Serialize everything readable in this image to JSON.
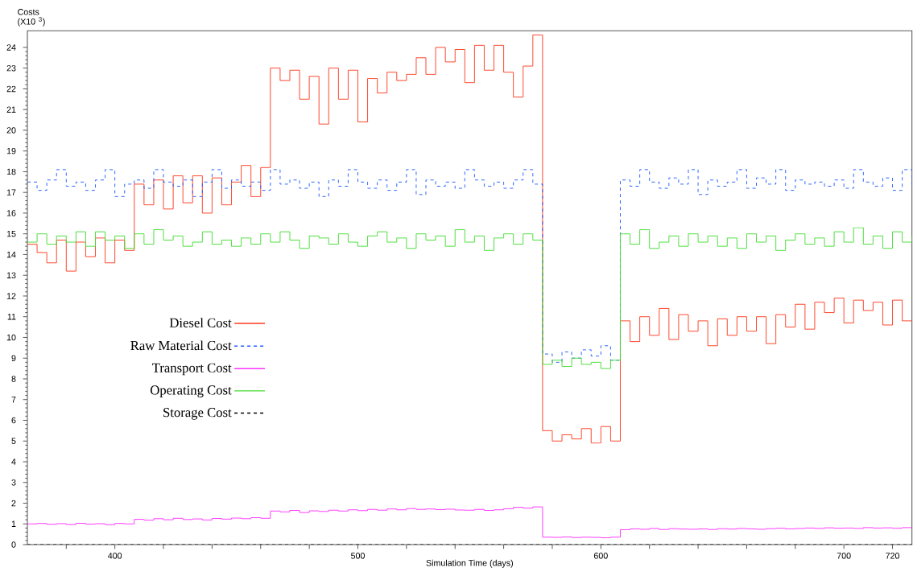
{
  "chart_data": {
    "type": "step",
    "xlabel": "Simulation Time (days)",
    "ylabel": "Costs (X10 $^{3}$)",
    "x": [
      364,
      368,
      372,
      376,
      380,
      384,
      388,
      392,
      396,
      400,
      404,
      408,
      412,
      416,
      420,
      424,
      428,
      432,
      436,
      440,
      444,
      448,
      452,
      456,
      460,
      464,
      468,
      472,
      476,
      480,
      484,
      488,
      492,
      496,
      500,
      504,
      508,
      512,
      516,
      520,
      524,
      528,
      532,
      536,
      540,
      544,
      548,
      552,
      556,
      560,
      564,
      568,
      572,
      576,
      580,
      584,
      588,
      592,
      596,
      600,
      604,
      608,
      612,
      616,
      620,
      624,
      628,
      632,
      636,
      640,
      644,
      648,
      652,
      656,
      660,
      664,
      668,
      672,
      676,
      680,
      684,
      688,
      692,
      696,
      700,
      704,
      708,
      712,
      716,
      720,
      724,
      728
    ],
    "series": [
      {
        "name": "Diesel Cost",
        "color": "#ff3b1f",
        "line_style": "solid",
        "values": [
          14.5,
          14.1,
          13.6,
          14.7,
          13.2,
          14.6,
          13.9,
          14.8,
          13.6,
          14.7,
          14.2,
          17.4,
          16.4,
          17.6,
          16.2,
          17.8,
          16.5,
          17.8,
          16.0,
          17.7,
          16.4,
          17.5,
          18.3,
          16.8,
          18.2,
          23.0,
          22.4,
          22.9,
          21.5,
          22.6,
          20.3,
          23.0,
          21.5,
          22.9,
          20.4,
          22.5,
          21.8,
          22.8,
          22.4,
          22.7,
          23.5,
          22.7,
          24.0,
          23.3,
          23.9,
          22.3,
          24.1,
          22.9,
          24.1,
          22.8,
          21.6,
          23.1,
          24.6,
          5.5,
          5.0,
          5.3,
          5.1,
          5.6,
          4.9,
          5.7,
          5.0,
          10.8,
          9.8,
          11.0,
          10.1,
          11.4,
          9.9,
          11.1,
          10.3,
          10.8,
          9.6,
          10.9,
          10.1,
          11.0,
          10.3,
          11.0,
          9.7,
          11.1,
          10.5,
          11.6,
          10.4,
          11.7,
          11.2,
          11.9,
          10.7,
          11.8,
          11.3,
          11.7,
          10.6,
          11.8,
          10.8,
          10.8
        ]
      },
      {
        "name": "Raw Material Cost",
        "color": "#1f5cff",
        "line_style": "dashed",
        "values": [
          17.5,
          17.1,
          17.6,
          18.1,
          17.3,
          17.5,
          17.1,
          17.6,
          18.1,
          16.8,
          17.4,
          17.6,
          17.2,
          18.1,
          17.5,
          17.3,
          17.6,
          16.8,
          17.5,
          18.1,
          17.2,
          17.6,
          17.3,
          17.5,
          17.1,
          18.1,
          17.4,
          17.6,
          17.2,
          17.5,
          16.8,
          17.6,
          17.3,
          18.1,
          17.5,
          17.2,
          17.6,
          17.1,
          17.5,
          18.1,
          16.9,
          17.6,
          17.3,
          17.5,
          17.2,
          18.1,
          17.6,
          17.3,
          17.5,
          17.2,
          17.6,
          18.1,
          17.4,
          9.2,
          8.8,
          9.3,
          9.0,
          9.4,
          9.1,
          9.6,
          8.9,
          17.6,
          17.3,
          18.1,
          17.5,
          17.2,
          17.7,
          17.4,
          18.1,
          16.9,
          17.6,
          17.3,
          17.5,
          18.1,
          17.2,
          17.7,
          17.4,
          18.1,
          17.1,
          17.6,
          17.4,
          17.5,
          17.3,
          17.6,
          17.2,
          18.1,
          17.5,
          17.3,
          17.7,
          17.1,
          18.1,
          17.3
        ]
      },
      {
        "name": "Transport Cost",
        "color": "#ff33ff",
        "line_style": "solid",
        "values": [
          1.0,
          1.02,
          0.98,
          1.01,
          0.97,
          1.03,
          0.99,
          1.01,
          0.96,
          1.02,
          1.0,
          1.22,
          1.18,
          1.25,
          1.2,
          1.27,
          1.21,
          1.24,
          1.19,
          1.26,
          1.23,
          1.28,
          1.25,
          1.3,
          1.27,
          1.62,
          1.58,
          1.65,
          1.55,
          1.63,
          1.6,
          1.66,
          1.62,
          1.68,
          1.64,
          1.7,
          1.66,
          1.72,
          1.68,
          1.74,
          1.7,
          1.72,
          1.69,
          1.71,
          1.67,
          1.66,
          1.7,
          1.65,
          1.68,
          1.73,
          1.8,
          1.76,
          1.82,
          0.36,
          0.35,
          0.37,
          0.34,
          0.36,
          0.35,
          0.33,
          0.36,
          0.72,
          0.76,
          0.74,
          0.78,
          0.73,
          0.77,
          0.75,
          0.74,
          0.76,
          0.73,
          0.77,
          0.75,
          0.78,
          0.76,
          0.74,
          0.77,
          0.79,
          0.76,
          0.78,
          0.8,
          0.78,
          0.81,
          0.79,
          0.8,
          0.78,
          0.82,
          0.8,
          0.81,
          0.79,
          0.82,
          0.8
        ]
      },
      {
        "name": "Operating Cost",
        "color": "#44dd33",
        "line_style": "solid",
        "values": [
          14.6,
          15.0,
          14.5,
          14.9,
          14.6,
          15.1,
          14.4,
          15.1,
          14.7,
          14.9,
          14.3,
          15.0,
          14.5,
          15.2,
          14.7,
          14.9,
          14.4,
          14.6,
          15.1,
          14.5,
          14.7,
          14.4,
          14.8,
          14.5,
          15.0,
          14.6,
          15.1,
          14.7,
          14.3,
          14.9,
          14.8,
          14.5,
          15.0,
          14.6,
          14.4,
          14.9,
          15.1,
          14.6,
          14.8,
          14.3,
          15.0,
          14.7,
          14.9,
          14.4,
          15.2,
          14.6,
          14.9,
          14.2,
          14.8,
          15.0,
          14.5,
          15.0,
          14.7,
          8.7,
          8.9,
          8.6,
          9.0,
          8.7,
          8.8,
          8.5,
          8.9,
          15.0,
          14.5,
          15.2,
          14.3,
          14.6,
          14.9,
          14.4,
          15.0,
          14.6,
          14.9,
          14.4,
          14.8,
          14.3,
          15.0,
          14.6,
          14.9,
          14.2,
          14.7,
          15.0,
          14.5,
          14.8,
          14.4,
          15.1,
          14.6,
          15.3,
          14.5,
          14.9,
          14.3,
          15.1,
          14.6,
          14.9
        ]
      },
      {
        "name": "Storage Cost",
        "color": "#000000",
        "line_style": "dashed",
        "x": [
          364,
          728
        ],
        "values": [
          0,
          0
        ]
      }
    ],
    "xlim": [
      364,
      728
    ],
    "xticks": [
      {
        "value": 380,
        "label": null
      },
      400,
      {
        "value": 420,
        "label": null
      },
      {
        "value": 440,
        "label": null
      },
      {
        "value": 460,
        "label": null
      },
      {
        "value": 480,
        "label": null
      },
      500,
      {
        "value": 520,
        "label": null
      },
      {
        "value": 540,
        "label": null
      },
      {
        "value": 560,
        "label": null
      },
      {
        "value": 580,
        "label": null
      },
      600,
      {
        "value": 620,
        "label": null
      },
      {
        "value": 640,
        "label": null
      },
      {
        "value": 660,
        "label": null
      },
      {
        "value": 680,
        "label": null
      },
      700,
      720
    ],
    "ylim": [
      0,
      24.8
    ],
    "yticks": [
      0,
      1,
      2,
      3,
      4,
      5,
      6,
      7,
      8,
      9,
      10,
      11,
      12,
      13,
      14,
      15,
      16,
      17,
      18,
      19,
      20,
      21,
      22,
      23,
      24
    ],
    "legend": "left",
    "grid": false
  }
}
